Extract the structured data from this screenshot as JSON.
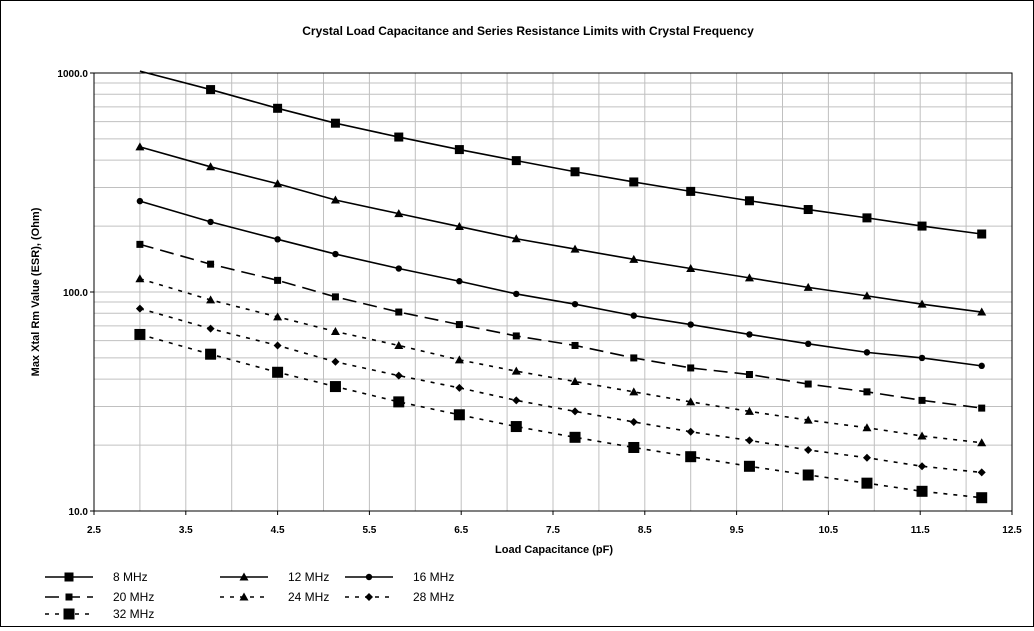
{
  "chart_data": {
    "type": "line",
    "title": "Crystal Load Capacitance and Series Resistance Limits with Crystal Frequency",
    "xlabel": "Load Capacitance (pF)",
    "ylabel": "Max Xtal Rm Value (ESR), (Ohm)",
    "xlim": [
      2.5,
      12.5
    ],
    "ylim": [
      10,
      1000
    ],
    "yscale": "log",
    "x_ticks": [
      "2.5",
      "3.5",
      "4.5",
      "5.5",
      "6.5",
      "7.5",
      "8.5",
      "9.5",
      "10.5",
      "11.5",
      "12.5"
    ],
    "y_ticks": [
      "10.0",
      "100.0",
      "1000.0"
    ],
    "grid": true,
    "legend_position": "bottom-left",
    "x": [
      3.0,
      3.77,
      4.5,
      5.13,
      5.82,
      6.48,
      7.1,
      7.74,
      8.38,
      9.0,
      9.64,
      10.28,
      10.92,
      11.52,
      12.17
    ],
    "series": [
      {
        "name": "8 MHz",
        "marker": "square",
        "dash": "solid",
        "values": [
          1020,
          840,
          690,
          590,
          510,
          447,
          398,
          354,
          318,
          288,
          261,
          238,
          218,
          200,
          184
        ]
      },
      {
        "name": "12 MHz",
        "marker": "triangle",
        "dash": "solid",
        "values": [
          460,
          373,
          312,
          263,
          228,
          199,
          175,
          157,
          141,
          128,
          116,
          105,
          96,
          88,
          81
        ]
      },
      {
        "name": "16 MHz",
        "marker": "circle",
        "dash": "solid",
        "values": [
          260,
          209,
          174,
          149,
          128,
          112,
          98,
          88,
          78,
          71,
          64,
          58,
          53,
          50,
          46
        ]
      },
      {
        "name": "20 MHz",
        "marker": "square-small",
        "dash": "long",
        "values": [
          165,
          134,
          113,
          95,
          81,
          71,
          63,
          57,
          50,
          45,
          42,
          38,
          35,
          32,
          29.5
        ]
      },
      {
        "name": "24 MHz",
        "marker": "triangle",
        "dash": "short",
        "values": [
          115,
          92,
          77,
          66,
          57,
          49,
          43.5,
          39,
          35,
          31.5,
          28.5,
          26,
          24,
          22,
          20.5
        ]
      },
      {
        "name": "28 MHz",
        "marker": "diamond",
        "dash": "short",
        "values": [
          84,
          68,
          57,
          48,
          41.5,
          36.5,
          32,
          28.5,
          25.5,
          23,
          21,
          19,
          17.5,
          16,
          15
        ]
      },
      {
        "name": "32 MHz",
        "marker": "square-large",
        "dash": "short",
        "values": [
          64,
          52,
          43,
          37,
          31.5,
          27.5,
          24.3,
          21.7,
          19.5,
          17.7,
          16,
          14.6,
          13.4,
          12.3,
          11.5
        ]
      }
    ]
  }
}
